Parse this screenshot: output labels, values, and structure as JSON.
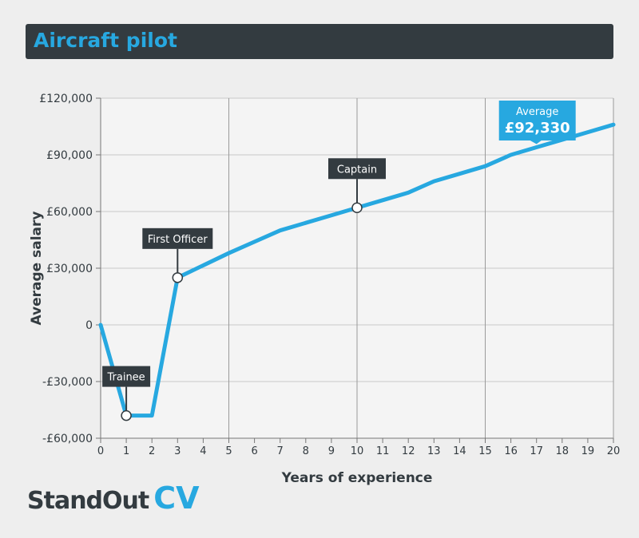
{
  "header": {
    "title": "Aircraft pilot"
  },
  "brand": {
    "name_part1": "StandOut",
    "name_part2": "CV"
  },
  "colors": {
    "line": "#27a8e0",
    "header_bg": "#333b40",
    "label_bg": "#333b40",
    "title": "#27a8e0",
    "grid": "#c8c8c8"
  },
  "chart_data": {
    "type": "line",
    "xlabel": "Years of experience",
    "ylabel": "Average salary",
    "xlim": [
      0,
      20
    ],
    "ylim": [
      -60000,
      120000
    ],
    "x_ticks": [
      0,
      1,
      2,
      3,
      4,
      5,
      6,
      7,
      8,
      9,
      10,
      11,
      12,
      13,
      14,
      15,
      16,
      17,
      18,
      19,
      20
    ],
    "y_ticks": [
      -60000,
      -30000,
      0,
      30000,
      60000,
      90000,
      120000
    ],
    "y_tick_labels": [
      "-£60,000",
      "-£30,000",
      "0",
      "£30,000",
      "£60,000",
      "£90,000",
      "£120,000"
    ],
    "grid": "major x every 5 years, y every £30,000",
    "series": [
      {
        "x": [
          0,
          1,
          2,
          3,
          4,
          5,
          6,
          7,
          8,
          9,
          10,
          11,
          12,
          13,
          14,
          15,
          16,
          17,
          18,
          19,
          20
        ],
        "values": [
          0,
          -48000,
          -48000,
          25000,
          31500,
          38000,
          44000,
          50000,
          54000,
          58000,
          62000,
          66000,
          70000,
          76000,
          80000,
          84000,
          90000,
          94000,
          98000,
          102000,
          106000
        ]
      }
    ],
    "annotations": [
      {
        "text": "Trainee",
        "x": 1,
        "y": -48000,
        "marker": true,
        "side": "above"
      },
      {
        "text": "First Officer",
        "x": 3,
        "y": 25000,
        "marker": true,
        "side": "above"
      },
      {
        "text": "Captain",
        "x": 10,
        "y": 62000,
        "marker": true,
        "side": "above"
      }
    ],
    "average": {
      "label": "Average",
      "value": "£92,330",
      "x": 17,
      "y": 94000
    }
  }
}
